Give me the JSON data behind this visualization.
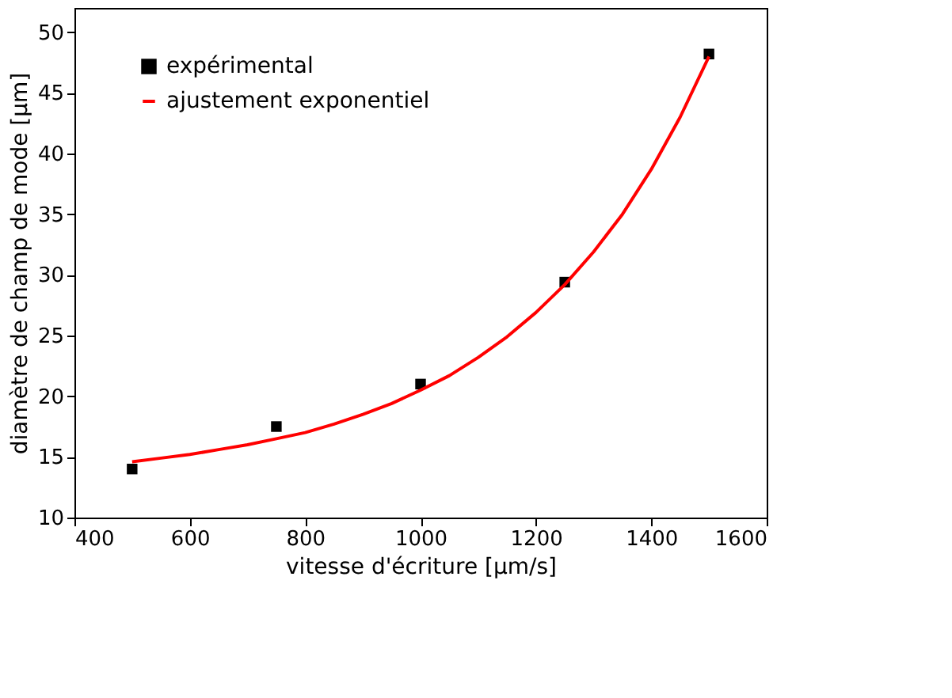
{
  "chart_data": {
    "type": "scatter",
    "xlabel": "vitesse d'écriture [µm/s]",
    "ylabel": "diamètre de champ de mode [µm]",
    "xlim": [
      400,
      1600
    ],
    "xticks": [
      400,
      600,
      800,
      1000,
      1200,
      1400,
      1600
    ],
    "ylim": [
      10,
      52
    ],
    "yticks": [
      10,
      15,
      20,
      25,
      30,
      35,
      40,
      45,
      50
    ],
    "grid": false,
    "legend": "top left",
    "series": [
      {
        "name": "expérimental",
        "marker": "square",
        "color": "#000000",
        "x": [
          500,
          750,
          1000,
          1250,
          1500
        ],
        "values": [
          14.0,
          17.5,
          21.0,
          29.4,
          48.2
        ]
      },
      {
        "name": "ajustement exponentiel",
        "type": "line",
        "marker": "none",
        "line_style": "solid",
        "color": "#ff0000",
        "x": [
          500,
          550,
          600,
          650,
          700,
          750,
          800,
          850,
          900,
          950,
          1000,
          1050,
          1100,
          1150,
          1200,
          1250,
          1300,
          1350,
          1400,
          1450,
          1500
        ],
        "values": [
          14.6,
          14.9,
          15.2,
          15.6,
          16.0,
          16.5,
          17.0,
          17.7,
          18.5,
          19.4,
          20.5,
          21.7,
          23.2,
          24.9,
          26.9,
          29.2,
          31.9,
          35.0,
          38.7,
          43.0,
          48.0
        ]
      }
    ]
  }
}
